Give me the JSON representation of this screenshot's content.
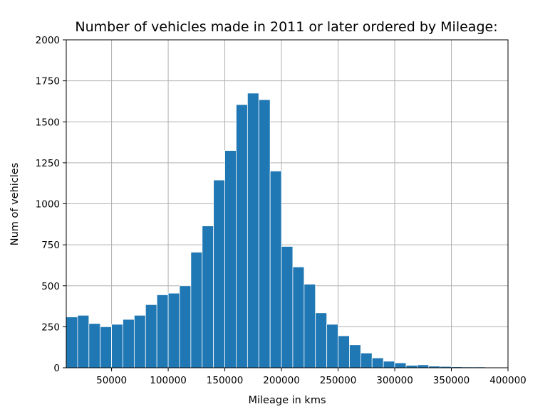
{
  "chart_data": {
    "type": "bar",
    "title": "Number of vehicles made in 2011 or later ordered by Mileage:",
    "xlabel": "Mileage in kms",
    "ylabel": "Num of vehicles",
    "xlim": [
      10000,
      400000
    ],
    "ylim": [
      0,
      2000
    ],
    "grid": true,
    "xticks": [
      50000,
      100000,
      150000,
      200000,
      250000,
      300000,
      350000,
      400000
    ],
    "xtick_labels": [
      "50000",
      "100000",
      "150000",
      "200000",
      "250000",
      "300000",
      "350000",
      "400000"
    ],
    "yticks": [
      0,
      250,
      500,
      750,
      1000,
      1250,
      1500,
      1750,
      2000
    ],
    "ytick_labels": [
      "0",
      "250",
      "500",
      "750",
      "1000",
      "1250",
      "1500",
      "1750",
      "2000"
    ],
    "bin_width": 10000,
    "x": [
      15000,
      25000,
      35000,
      45000,
      55000,
      65000,
      75000,
      85000,
      95000,
      105000,
      115000,
      125000,
      135000,
      145000,
      155000,
      165000,
      175000,
      185000,
      195000,
      205000,
      215000,
      225000,
      235000,
      245000,
      255000,
      265000,
      275000,
      285000,
      295000,
      305000,
      315000,
      325000,
      335000,
      345000,
      355000,
      365000,
      375000
    ],
    "values": [
      310,
      320,
      270,
      250,
      265,
      295,
      320,
      385,
      445,
      455,
      500,
      705,
      865,
      1145,
      1325,
      1605,
      1675,
      1635,
      1200,
      740,
      615,
      510,
      335,
      265,
      195,
      140,
      90,
      60,
      40,
      30,
      15,
      18,
      10,
      8,
      6,
      5,
      5
    ],
    "bar_color": "#1f77b4"
  }
}
